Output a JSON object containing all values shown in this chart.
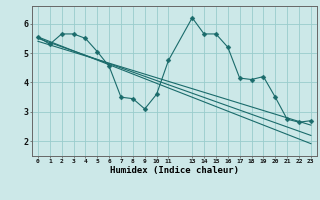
{
  "title": "",
  "xlabel": "Humidex (Indice chaleur)",
  "bg_color": "#cce8e8",
  "grid_color": "#99cccc",
  "line_color": "#1a6b6b",
  "xlim": [
    -0.5,
    23.5
  ],
  "ylim": [
    1.5,
    6.6
  ],
  "yticks": [
    2,
    3,
    4,
    5,
    6
  ],
  "xtick_positions": [
    0,
    1,
    2,
    3,
    4,
    5,
    6,
    7,
    8,
    9,
    10,
    11,
    13,
    14,
    15,
    16,
    17,
    18,
    19,
    20,
    21,
    22,
    23
  ],
  "xtick_labels": [
    "0",
    "1",
    "2",
    "3",
    "4",
    "5",
    "6",
    "7",
    "8",
    "9",
    "10",
    "11",
    "13",
    "14",
    "15",
    "16",
    "17",
    "18",
    "19",
    "20",
    "21",
    "22",
    "23"
  ],
  "line1_x": [
    0,
    1,
    2,
    3,
    4,
    5,
    6,
    7,
    8,
    9,
    10,
    11,
    13,
    14,
    15,
    16,
    17,
    18,
    19,
    20,
    21,
    22,
    23
  ],
  "line1_y": [
    5.55,
    5.3,
    5.65,
    5.65,
    5.5,
    5.05,
    4.55,
    3.5,
    3.45,
    3.1,
    3.6,
    4.75,
    6.2,
    5.65,
    5.65,
    5.2,
    4.15,
    4.1,
    4.2,
    3.5,
    2.75,
    2.65,
    2.7
  ],
  "line2_x": [
    0,
    23
  ],
  "line2_y": [
    5.55,
    1.92
  ],
  "line3_x": [
    0,
    23
  ],
  "line3_y": [
    5.5,
    2.2
  ],
  "line4_x": [
    0,
    23
  ],
  "line4_y": [
    5.4,
    2.55
  ]
}
